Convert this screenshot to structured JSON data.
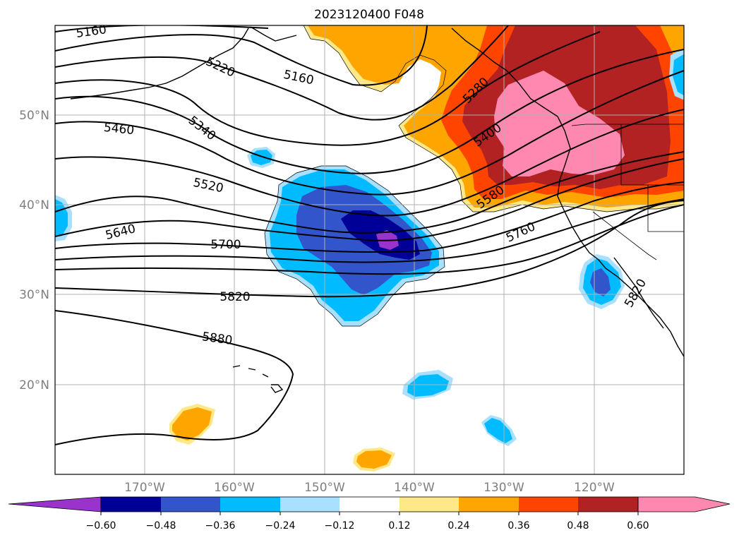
{
  "title": "2023120400 F048",
  "lat_labels": [
    "50°N",
    "40°N",
    "30°N",
    "20°N"
  ],
  "lon_labels": [
    "170°W",
    "160°W",
    "150°W",
    "140°W",
    "130°W",
    "120°W"
  ],
  "colorbar": {
    "ticks": [
      "−0.60",
      "−0.48",
      "−0.36",
      "−0.24",
      "−0.12",
      "0.12",
      "0.24",
      "0.36",
      "0.48",
      "0.60"
    ],
    "colors": [
      "#9933cc",
      "#000099",
      "#3355cc",
      "#00bbff",
      "#aae0ff",
      "#ffffff",
      "#ffe888",
      "#ffa500",
      "#ff4400",
      "#b22222",
      "#ff88b0"
    ]
  },
  "contour_labels": [
    {
      "text": "5160"
    },
    {
      "text": "5220"
    },
    {
      "text": "5160"
    },
    {
      "text": "5340"
    },
    {
      "text": "5460"
    },
    {
      "text": "5520"
    },
    {
      "text": "5640"
    },
    {
      "text": "5700"
    },
    {
      "text": "5820"
    },
    {
      "text": "5880"
    },
    {
      "text": "5280"
    },
    {
      "text": "5400"
    },
    {
      "text": "5580"
    },
    {
      "text": "5760"
    },
    {
      "text": "5820"
    }
  ]
}
